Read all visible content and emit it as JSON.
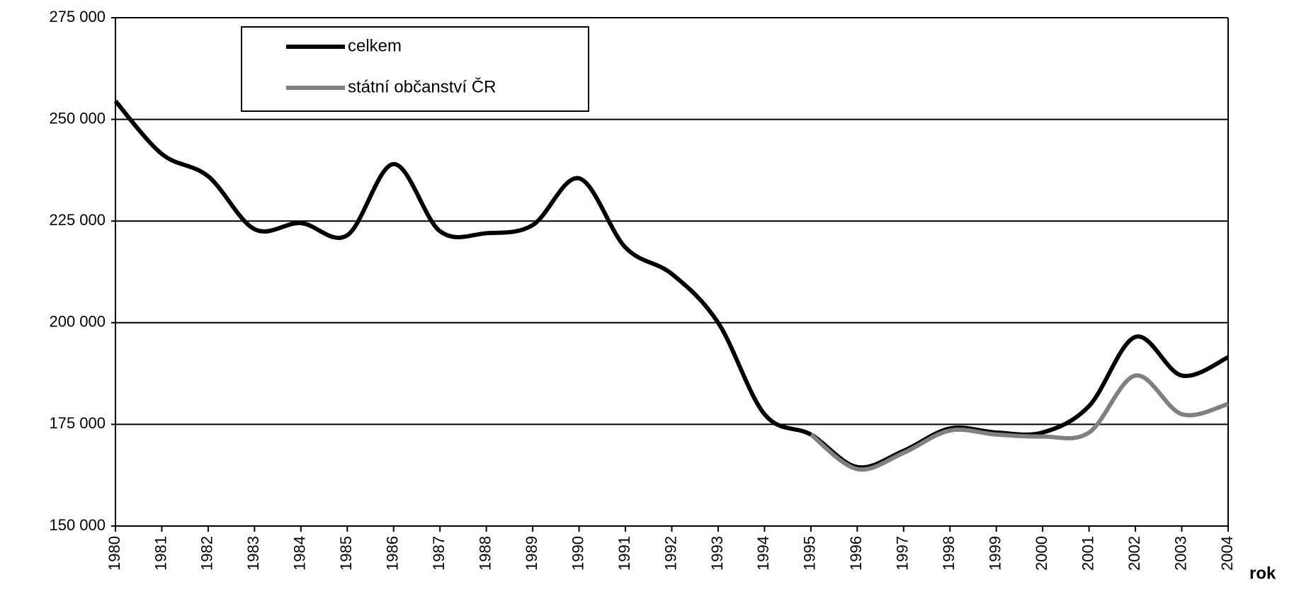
{
  "chart_data": {
    "type": "line",
    "x": [
      1980,
      1981,
      1982,
      1983,
      1984,
      1985,
      1986,
      1987,
      1988,
      1989,
      1990,
      1991,
      1992,
      1993,
      1994,
      1995,
      1996,
      1997,
      1998,
      1999,
      2000,
      2001,
      2002,
      2003,
      2004
    ],
    "series": [
      {
        "name": "celkem",
        "color": "#000000",
        "values": [
          254500,
          241500,
          236000,
          223000,
          224500,
          221500,
          239000,
          222500,
          222000,
          224000,
          235500,
          218500,
          212000,
          200000,
          177500,
          172500,
          164500,
          168500,
          174000,
          173000,
          173000,
          179500,
          196500,
          187000,
          191500
        ]
      },
      {
        "name": "státní občanství ČR",
        "color": "#808080",
        "values": [
          null,
          null,
          null,
          null,
          null,
          null,
          null,
          null,
          null,
          null,
          null,
          null,
          null,
          null,
          null,
          172500,
          164000,
          168000,
          173500,
          172500,
          172000,
          173000,
          187000,
          177500,
          180000
        ]
      }
    ],
    "xlabel": "rok",
    "xlim": [
      1980,
      2004
    ],
    "xticks": [
      1980,
      1981,
      1982,
      1983,
      1984,
      1985,
      1986,
      1987,
      1988,
      1989,
      1990,
      1991,
      1992,
      1993,
      1994,
      1995,
      1996,
      1997,
      1998,
      1999,
      2000,
      2001,
      2002,
      2003,
      2004
    ],
    "ylim": [
      150000,
      275000
    ],
    "yticks": [
      {
        "value": 150000,
        "label": "150 000"
      },
      {
        "value": 175000,
        "label": "175 000"
      },
      {
        "value": 200000,
        "label": "200 000"
      },
      {
        "value": 225000,
        "label": "225 000"
      },
      {
        "value": 250000,
        "label": "250 000"
      },
      {
        "value": 275000,
        "label": "275 000"
      }
    ],
    "grid": true,
    "legend": "top-left"
  }
}
